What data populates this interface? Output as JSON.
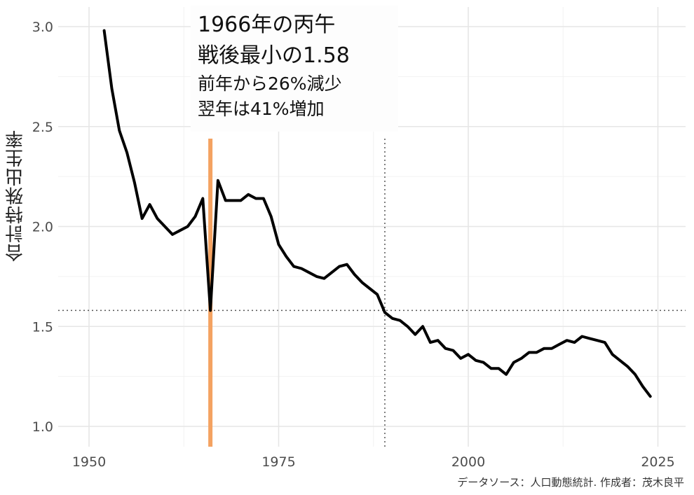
{
  "annotation": {
    "line1": "1966年の丙午",
    "line2": "戦後最小の1.58",
    "line3": "前年から26%減少",
    "line4": "翌年は41%増加"
  },
  "caption": "データソース：人口動態統計. 作成者：茂木良平",
  "chart_data": {
    "type": "line",
    "title": "",
    "xlabel": "",
    "ylabel": "合計特殊出生率",
    "xlim": [
      1950,
      2025
    ],
    "ylim": [
      1.0,
      3.0
    ],
    "x_ticks": [
      1950,
      1975,
      2000,
      2025
    ],
    "y_ticks": [
      "1.0",
      "1.5",
      "2.0",
      "2.5",
      "3.0"
    ],
    "grid": true,
    "legend": "none",
    "colors": {
      "line": "#000000",
      "highlight": "#f4a261",
      "reference": "#555555"
    },
    "reference_lines": {
      "vertical_x": [
        1966,
        1989
      ],
      "horizontal_y": 1.58
    },
    "series": [
      {
        "x": [
          1952,
          1953,
          1954,
          1955,
          1956,
          1957,
          1958,
          1959,
          1960,
          1961,
          1962,
          1963,
          1964,
          1965,
          1966,
          1967,
          1968,
          1969,
          1970,
          1971,
          1972,
          1973,
          1974,
          1975,
          1976,
          1977,
          1978,
          1979,
          1980,
          1981,
          1982,
          1983,
          1984,
          1985,
          1986,
          1987,
          1988,
          1989,
          1990,
          1991,
          1992,
          1993,
          1994,
          1995,
          1996,
          1997,
          1998,
          1999,
          2000,
          2001,
          2002,
          2003,
          2004,
          2005,
          2006,
          2007,
          2008,
          2009,
          2010,
          2011,
          2012,
          2013,
          2014,
          2015,
          2016,
          2017,
          2018,
          2019,
          2020,
          2021,
          2022,
          2023,
          2024
        ],
        "y": [
          2.98,
          2.69,
          2.48,
          2.37,
          2.22,
          2.04,
          2.11,
          2.04,
          2.0,
          1.96,
          1.98,
          2.0,
          2.05,
          2.14,
          1.58,
          2.23,
          2.13,
          2.13,
          2.13,
          2.16,
          2.14,
          2.14,
          2.05,
          1.91,
          1.85,
          1.8,
          1.79,
          1.77,
          1.75,
          1.74,
          1.77,
          1.8,
          1.81,
          1.76,
          1.72,
          1.69,
          1.66,
          1.57,
          1.54,
          1.53,
          1.5,
          1.46,
          1.5,
          1.42,
          1.43,
          1.39,
          1.38,
          1.34,
          1.36,
          1.33,
          1.32,
          1.29,
          1.29,
          1.26,
          1.32,
          1.34,
          1.37,
          1.37,
          1.39,
          1.39,
          1.41,
          1.43,
          1.42,
          1.45,
          1.44,
          1.43,
          1.42,
          1.36,
          1.33,
          1.3,
          1.26,
          1.2,
          1.15
        ]
      }
    ]
  }
}
